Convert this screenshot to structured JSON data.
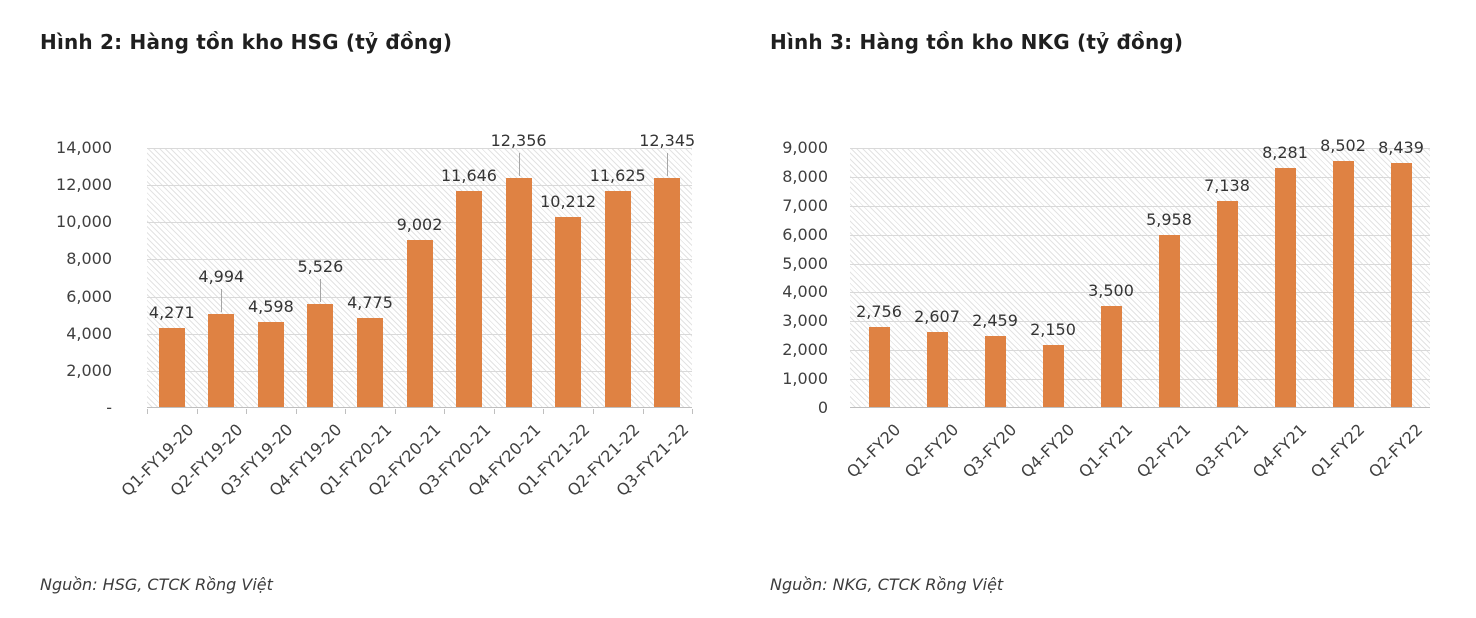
{
  "colors": {
    "bar": "#DF8243",
    "gridline": "#d9d9d9",
    "axis_line": "#bfbfbf",
    "hatch_line": "#e3e3e3",
    "leader_line": "#a6a6a6",
    "title_text": "#1f1f1f",
    "tick_text": "#404040",
    "source_text": "#3c3c3c"
  },
  "chart_data": [
    {
      "type": "bar",
      "title": "Hình 2: Hàng tồn kho HSG (tỷ đồng)",
      "source": "Nguồn: HSG, CTCK Rồng Việt",
      "xlabel": "",
      "ylabel": "",
      "ylim": [
        0,
        14000
      ],
      "ytick_step": 2000,
      "ytick_labels": [
        "14,000",
        "12,000",
        "10,000",
        "8,000",
        "6,000",
        "4,000",
        "2,000",
        "-"
      ],
      "grid": true,
      "legend": "none",
      "categories": [
        "Q1-FY19-20",
        "Q2-FY19-20",
        "Q3-FY19-20",
        "Q4-FY19-20",
        "Q1-FY20-21",
        "Q2-FY20-21",
        "Q3-FY20-21",
        "Q4-FY20-21",
        "Q1-FY21-22",
        "Q2-FY21-22",
        "Q3-FY21-22"
      ],
      "values": [
        4271,
        4994,
        4598,
        5526,
        4775,
        9002,
        11646,
        12356,
        10212,
        11625,
        12345
      ],
      "value_labels": [
        "4,271",
        "4,994",
        "4,598",
        "5,526",
        "4,775",
        "9,002",
        "11,646",
        "12,356",
        "10,212",
        "11,625",
        "12,345"
      ],
      "label_raised": [
        false,
        true,
        false,
        true,
        false,
        false,
        false,
        true,
        false,
        false,
        true
      ]
    },
    {
      "type": "bar",
      "title": "Hình 3: Hàng tồn kho NKG (tỷ đồng)",
      "source": "Nguồn: NKG, CTCK Rồng Việt",
      "xlabel": "",
      "ylabel": "",
      "ylim": [
        0,
        9000
      ],
      "ytick_step": 1000,
      "ytick_labels": [
        "9,000",
        "8,000",
        "7,000",
        "6,000",
        "5,000",
        "4,000",
        "3,000",
        "2,000",
        "1,000",
        "0"
      ],
      "grid": true,
      "legend": "none",
      "categories": [
        "Q1-FY20",
        "Q2-FY20",
        "Q3-FY20",
        "Q4-FY20",
        "Q1-FY21",
        "Q2-FY21",
        "Q3-FY21",
        "Q4-FY21",
        "Q1-FY22",
        "Q2-FY22"
      ],
      "values": [
        2756,
        2607,
        2459,
        2150,
        3500,
        5958,
        7138,
        8281,
        8502,
        8439
      ],
      "value_labels": [
        "2,756",
        "2,607",
        "2,459",
        "2,150",
        "3,500",
        "5,958",
        "7,138",
        "8,281",
        "8,502",
        "8,439"
      ],
      "label_raised": [
        false,
        false,
        false,
        false,
        false,
        false,
        false,
        false,
        false,
        false
      ]
    }
  ]
}
